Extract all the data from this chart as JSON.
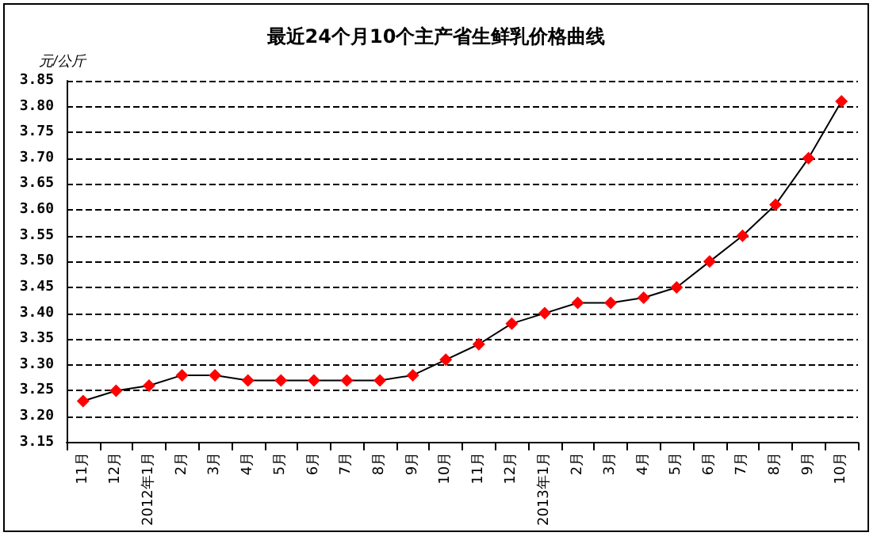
{
  "chart_data": {
    "type": "line",
    "title": "最近24个月10个主产省生鲜乳价格曲线",
    "ylabel": "元/公斤",
    "categories": [
      "11月",
      "12月",
      "2012年1月",
      "2月",
      "3月",
      "4月",
      "5月",
      "6月",
      "7月",
      "8月",
      "9月",
      "10月",
      "11月",
      "12月",
      "2013年1月",
      "2月",
      "3月",
      "4月",
      "5月",
      "6月",
      "7月",
      "8月",
      "9月",
      "10月"
    ],
    "series": [
      {
        "color": "#ff0000",
        "values": [
          3.23,
          3.25,
          3.26,
          3.28,
          3.28,
          3.27,
          3.27,
          3.27,
          3.27,
          3.27,
          3.28,
          3.31,
          3.34,
          3.38,
          3.4,
          3.42,
          3.42,
          3.43,
          3.45,
          3.5,
          3.55,
          3.61,
          3.7,
          3.81
        ]
      }
    ],
    "ylim": [
      3.15,
      3.85
    ],
    "yticks": [
      {
        "value": 3.15,
        "label": "3.15"
      },
      {
        "value": 3.2,
        "label": "3.20"
      },
      {
        "value": 3.25,
        "label": "3.25"
      },
      {
        "value": 3.3,
        "label": "3.30"
      },
      {
        "value": 3.35,
        "label": "3.35"
      },
      {
        "value": 3.4,
        "label": "3.40"
      },
      {
        "value": 3.45,
        "label": "3.45"
      },
      {
        "value": 3.5,
        "label": "3.50"
      },
      {
        "value": 3.55,
        "label": "3.55"
      },
      {
        "value": 3.6,
        "label": "3.60"
      },
      {
        "value": 3.65,
        "label": "3.65"
      },
      {
        "value": 3.7,
        "label": "3.70"
      },
      {
        "value": 3.75,
        "label": "3.75"
      },
      {
        "value": 3.8,
        "label": "3.80"
      },
      {
        "value": 3.85,
        "label": "3.85"
      }
    ],
    "grid": "y",
    "marker": "diamond",
    "line_style": "solid"
  }
}
